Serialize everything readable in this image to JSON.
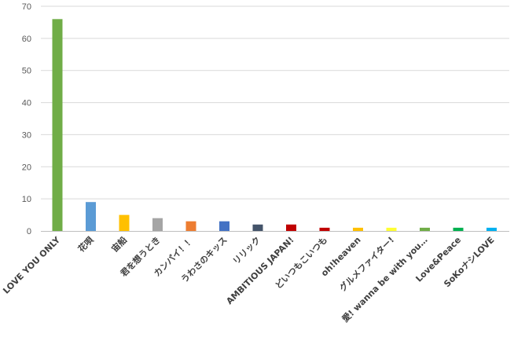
{
  "chart_data": {
    "type": "bar",
    "title": "",
    "xlabel": "",
    "ylabel": "",
    "ylim": [
      0,
      70
    ],
    "ytick_step": 10,
    "yticks": [
      "0",
      "10",
      "20",
      "30",
      "40",
      "50",
      "60",
      "70"
    ],
    "grid": true,
    "legend": "none",
    "categories": [
      "LOVE YOU ONLY",
      "花唄",
      "宙船",
      "君を想うとき",
      "カンパイ！！",
      "うわさのキッス",
      "リリック",
      "AMBITIOUS JAPAN!",
      "どいつもこいつも",
      "oh!heaven",
      "グルメファイター!",
      "愛! wanna be with you…",
      "Love&Peace",
      "SoKoナシLOVE"
    ],
    "values": [
      66,
      9,
      5,
      4,
      3,
      3,
      2,
      2,
      1,
      1,
      1,
      1,
      1,
      1
    ],
    "colors": [
      "#70ad47",
      "#5b9bd5",
      "#ffc000",
      "#a5a5a5",
      "#ed7d31",
      "#4472c4",
      "#44546a",
      "#c00000",
      "#c00000",
      "#ffc000",
      "#ffff33",
      "#70ad47",
      "#00b050",
      "#00b0f0"
    ]
  }
}
